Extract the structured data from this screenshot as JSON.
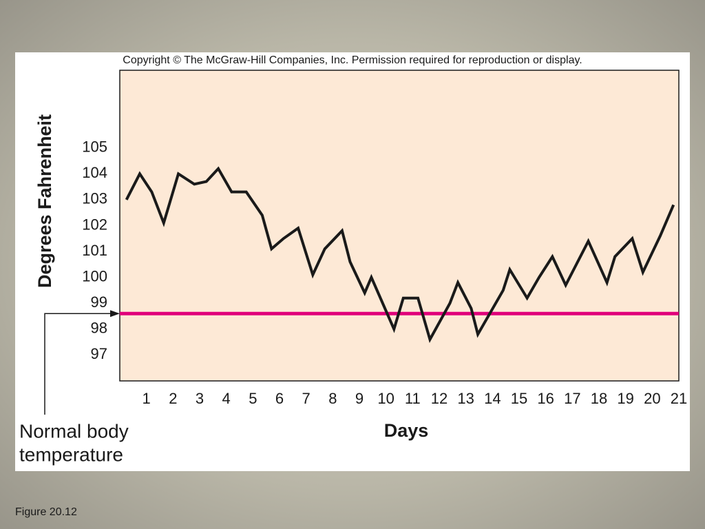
{
  "caption": "Figure 20.12",
  "chart_data": {
    "type": "line",
    "title": "Copyright © The McGraw-Hill Companies, Inc. Permission required for reproduction or display.",
    "y_label": "Degrees Fahrenheit",
    "x_label": "Days",
    "x": [
      0.25,
      0.75,
      1.2,
      1.65,
      2.2,
      2.8,
      3.25,
      3.7,
      4.2,
      4.75,
      5.35,
      5.7,
      6.15,
      6.7,
      7.25,
      7.7,
      8.35,
      8.65,
      9.2,
      9.45,
      10.3,
      10.65,
      11.2,
      11.65,
      12.4,
      12.7,
      13.2,
      13.45,
      14.4,
      14.65,
      15.3,
      15.75,
      16.25,
      16.75,
      17.15,
      17.6,
      18.3,
      18.6,
      19.25,
      19.65,
      20.3,
      20.8
    ],
    "values": [
      103.0,
      104.0,
      103.3,
      102.1,
      104.0,
      103.6,
      103.7,
      104.2,
      103.3,
      103.3,
      102.4,
      101.1,
      101.5,
      101.9,
      100.1,
      101.1,
      101.8,
      100.6,
      99.4,
      100.0,
      98.0,
      99.2,
      99.2,
      97.6,
      99.0,
      99.8,
      98.8,
      97.8,
      99.5,
      100.3,
      99.2,
      100.0,
      100.8,
      99.7,
      100.5,
      101.4,
      99.8,
      100.8,
      101.5,
      100.2,
      101.6,
      102.8
    ],
    "color": "#1a1a1a",
    "xlim": [
      0,
      21
    ],
    "xticks": [
      1,
      2,
      3,
      4,
      5,
      6,
      7,
      8,
      9,
      10,
      11,
      12,
      13,
      14,
      15,
      16,
      17,
      18,
      19,
      20,
      21
    ],
    "ylim": [
      96,
      108
    ],
    "yticks": [
      97,
      98,
      99,
      100,
      101,
      102,
      103,
      104,
      105
    ],
    "reference_line": {
      "value": 98.6,
      "color": "#e0007a",
      "label": [
        "Normal body",
        "temperature"
      ]
    }
  }
}
